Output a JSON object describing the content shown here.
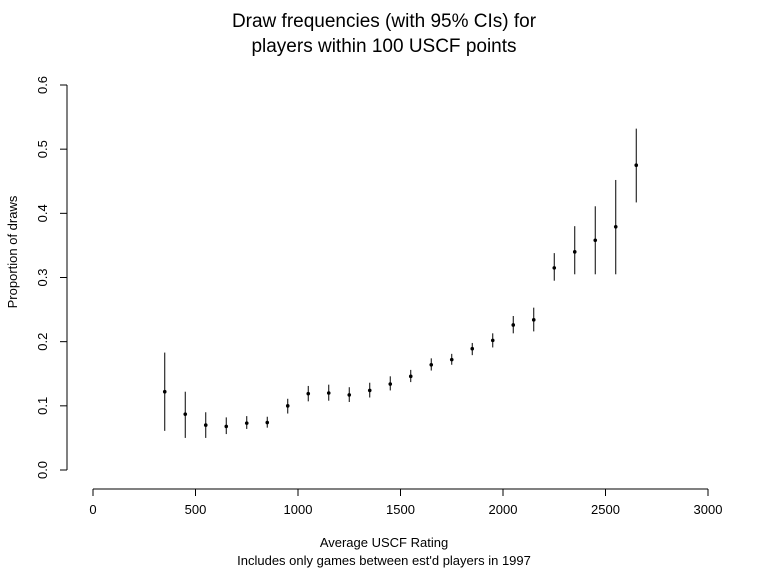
{
  "chart_data": {
    "type": "scatter",
    "title_line1": "Draw frequencies (with 95% CIs) for",
    "title_line2": "players within 100 USCF points",
    "xlabel": "Average USCF Rating",
    "xlabel_sub": "Includes only games between est'd players in 1997",
    "ylabel": "Proportion of draws",
    "xlim": [
      0,
      3000
    ],
    "ylim": [
      0,
      0.6
    ],
    "x_ticks": [
      "0",
      "500",
      "1000",
      "1500",
      "2000",
      "2500",
      "3000"
    ],
    "y_ticks": [
      "0.0",
      "0.1",
      "0.2",
      "0.3",
      "0.4",
      "0.5",
      "0.6"
    ],
    "series": [
      {
        "x": [
          350,
          450,
          550,
          650,
          750,
          850,
          950,
          1050,
          1150,
          1250,
          1350,
          1450,
          1550,
          1650,
          1750,
          1850,
          1950,
          2050,
          2150,
          2250,
          2350,
          2450,
          2550,
          2650
        ],
        "y": [
          0.122,
          0.087,
          0.07,
          0.068,
          0.073,
          0.074,
          0.1,
          0.119,
          0.12,
          0.117,
          0.124,
          0.134,
          0.146,
          0.164,
          0.172,
          0.189,
          0.202,
          0.226,
          0.234,
          0.315,
          0.34,
          0.358,
          0.379,
          0.475
        ],
        "lower": [
          0.061,
          0.05,
          0.05,
          0.056,
          0.064,
          0.066,
          0.088,
          0.107,
          0.108,
          0.106,
          0.113,
          0.124,
          0.137,
          0.155,
          0.164,
          0.179,
          0.191,
          0.213,
          0.216,
          0.295,
          0.305,
          0.305,
          0.305,
          0.417
        ],
        "upper": [
          0.183,
          0.122,
          0.09,
          0.082,
          0.084,
          0.083,
          0.111,
          0.131,
          0.133,
          0.129,
          0.136,
          0.146,
          0.156,
          0.174,
          0.181,
          0.198,
          0.213,
          0.24,
          0.253,
          0.338,
          0.38,
          0.411,
          0.452,
          0.532
        ]
      }
    ]
  }
}
